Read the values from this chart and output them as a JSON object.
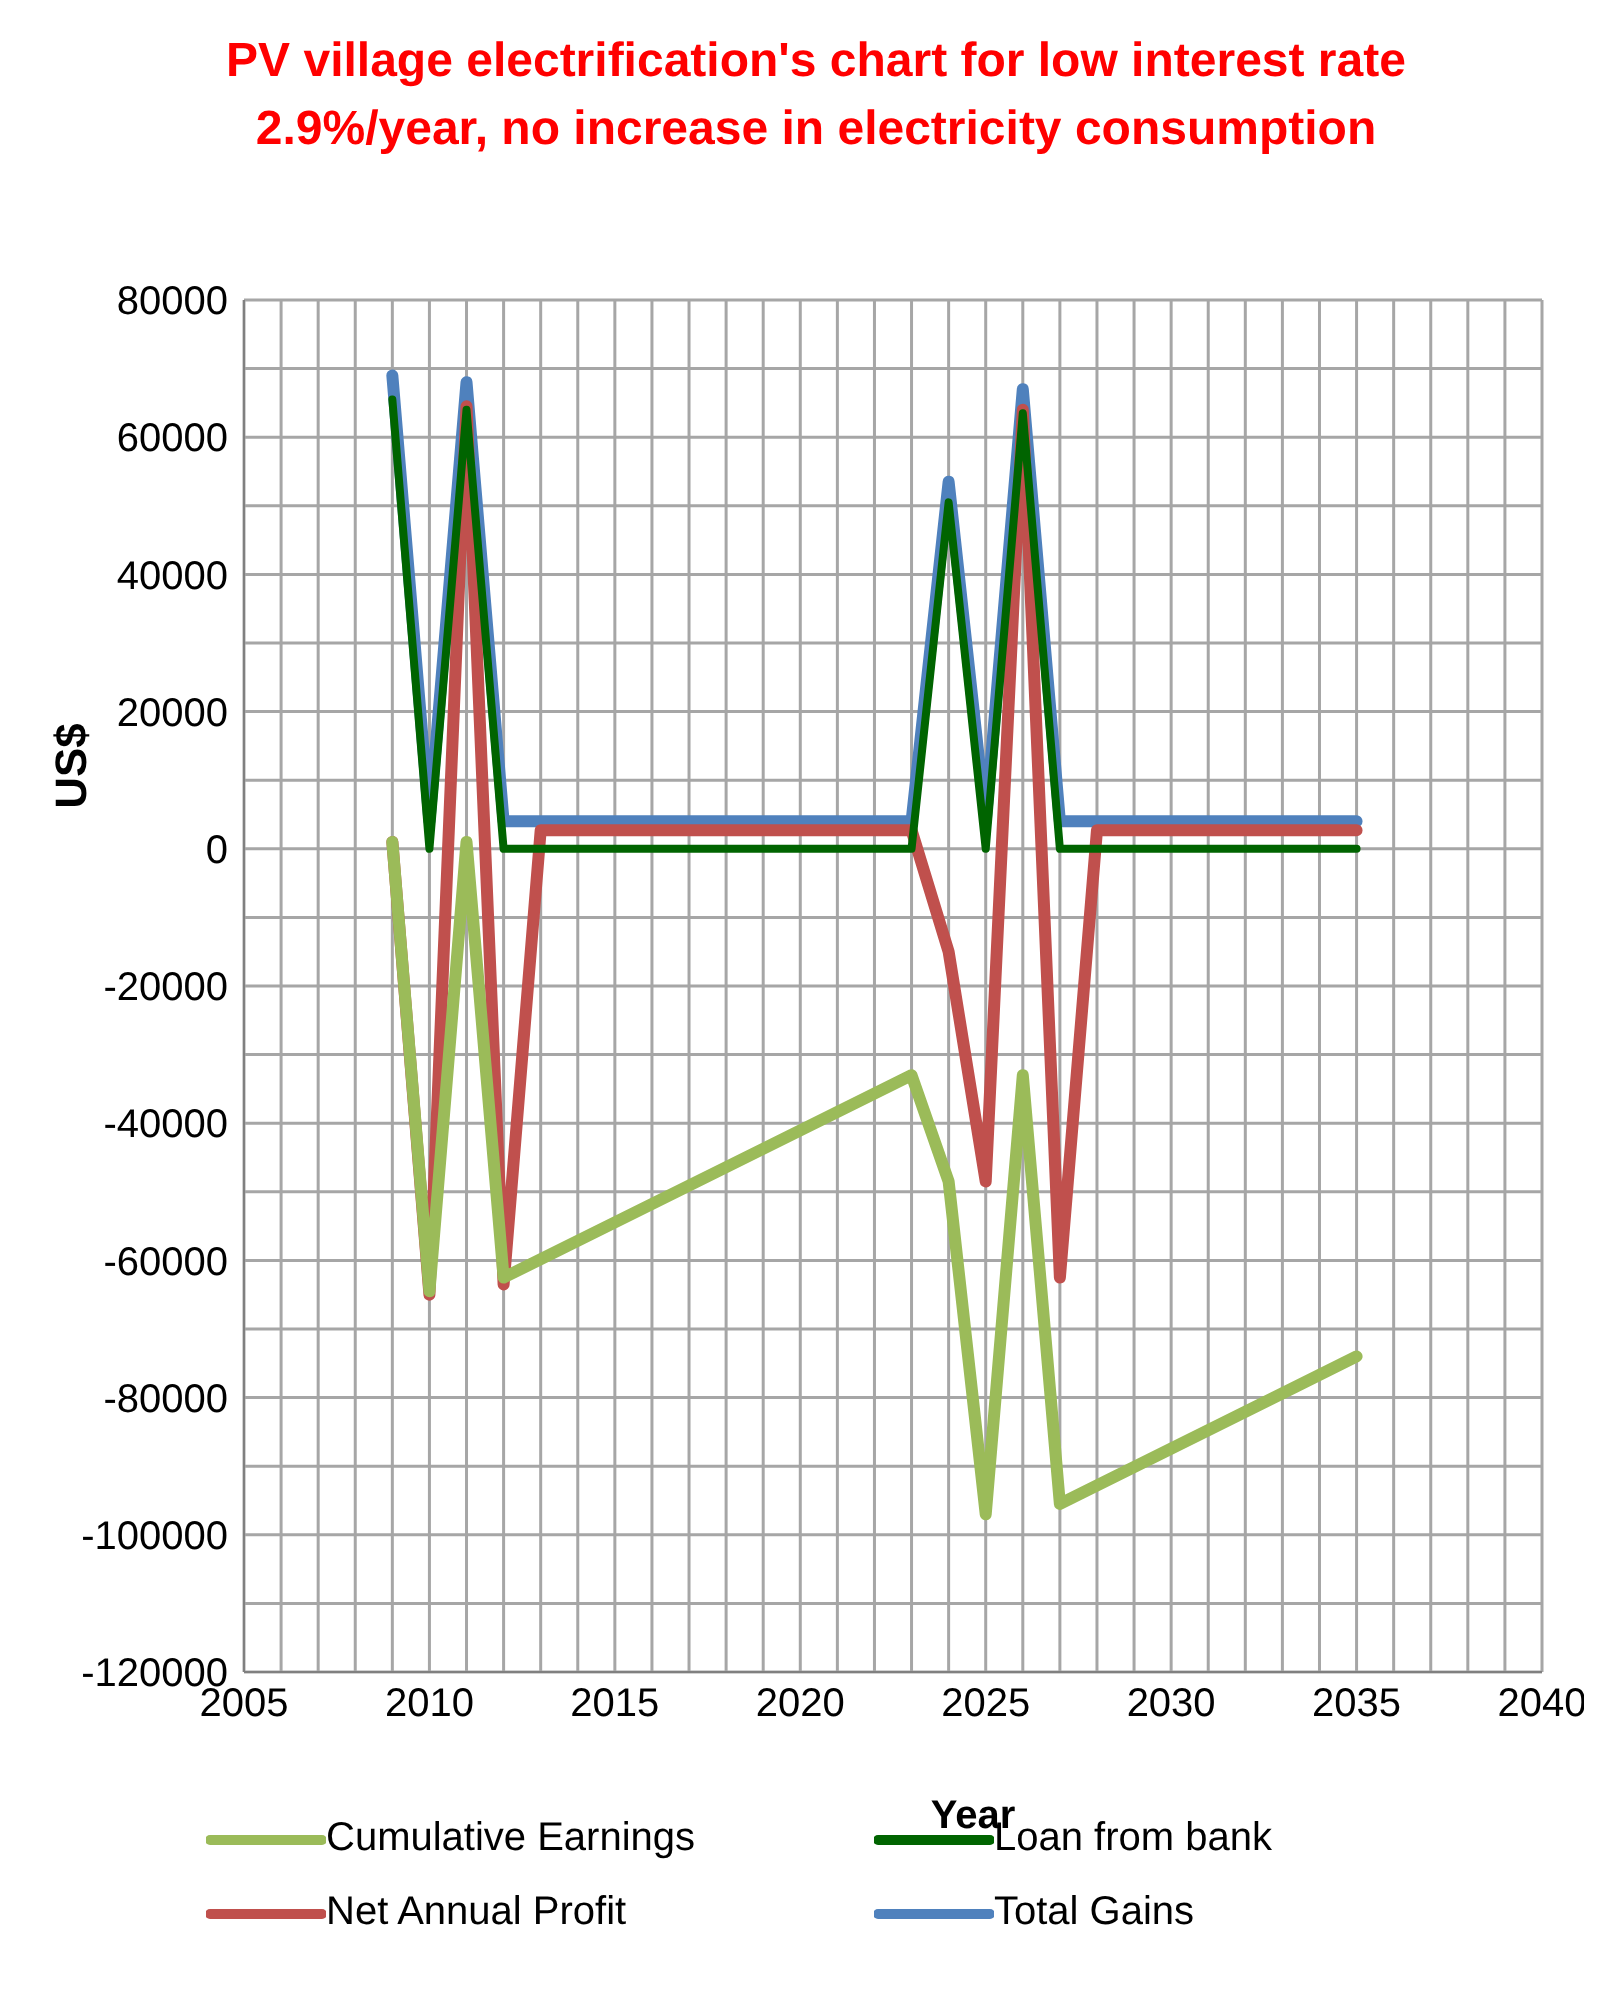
{
  "chart_data": {
    "type": "line",
    "title": "PV village electrification's chart for low interest rate 2.9%/year, no increase in electricity consumption",
    "xlabel": "Year",
    "ylabel": "US$",
    "xlim": [
      2005,
      2040
    ],
    "ylim": [
      -120000,
      80000
    ],
    "xticks": [
      2005,
      {
        "value": 2006,
        "label": null
      },
      {
        "value": 2007,
        "label": null
      },
      {
        "value": 2008,
        "label": null
      },
      {
        "value": 2009,
        "label": null
      },
      2010,
      {
        "value": 2011,
        "label": null
      },
      {
        "value": 2012,
        "label": null
      },
      {
        "value": 2013,
        "label": null
      },
      {
        "value": 2014,
        "label": null
      },
      2015,
      {
        "value": 2016,
        "label": null
      },
      {
        "value": 2017,
        "label": null
      },
      {
        "value": 2018,
        "label": null
      },
      {
        "value": 2019,
        "label": null
      },
      2020,
      {
        "value": 2021,
        "label": null
      },
      {
        "value": 2022,
        "label": null
      },
      {
        "value": 2023,
        "label": null
      },
      {
        "value": 2024,
        "label": null
      },
      2025,
      {
        "value": 2026,
        "label": null
      },
      {
        "value": 2027,
        "label": null
      },
      {
        "value": 2028,
        "label": null
      },
      {
        "value": 2029,
        "label": null
      },
      2030,
      {
        "value": 2031,
        "label": null
      },
      {
        "value": 2032,
        "label": null
      },
      {
        "value": 2033,
        "label": null
      },
      {
        "value": 2034,
        "label": null
      },
      2035,
      {
        "value": 2036,
        "label": null
      },
      {
        "value": 2037,
        "label": null
      },
      {
        "value": 2038,
        "label": null
      },
      {
        "value": 2039,
        "label": null
      },
      2040
    ],
    "yticks": [
      -120000,
      {
        "value": -110000,
        "label": null
      },
      -100000,
      {
        "value": -90000,
        "label": null
      },
      -80000,
      {
        "value": -70000,
        "label": null
      },
      -60000,
      {
        "value": -50000,
        "label": null
      },
      -40000,
      {
        "value": -30000,
        "label": null
      },
      -20000,
      {
        "value": -10000,
        "label": null
      },
      0,
      {
        "value": 10000,
        "label": null
      },
      20000,
      {
        "value": 30000,
        "label": null
      },
      40000,
      {
        "value": 50000,
        "label": null
      },
      60000,
      {
        "value": 70000,
        "label": null
      },
      80000
    ],
    "grid": true,
    "legend": "bottom",
    "marker": "none",
    "line_style": "solid",
    "series": [
      {
        "name": "Total Gains",
        "color": "#4f81bd",
        "x": [
          2009,
          2010,
          2011,
          2012,
          2023,
          2024,
          2025,
          2026,
          2027,
          2035
        ],
        "values": [
          69000,
          4000,
          68000,
          4000,
          4000,
          53500,
          4000,
          67000,
          4000,
          4000
        ]
      },
      {
        "name": "Net Annual Profit",
        "color": "#c0504d",
        "x": [
          2009,
          2010,
          2011,
          2012,
          2013,
          2023,
          2024,
          2025,
          2026,
          2027,
          2028,
          2035
        ],
        "values": [
          1000,
          -65000,
          64500,
          -63500,
          2700,
          2700,
          -15000,
          -48500,
          64000,
          -62500,
          2700,
          2700
        ]
      },
      {
        "name": "Cumulative Earnings",
        "color": "#9bbb59",
        "x": [
          2009,
          2010,
          2011,
          2012,
          2023,
          2024,
          2025,
          2026,
          2027,
          2035
        ],
        "values": [
          1000,
          -64500,
          1000,
          -62500,
          -33000,
          -48500,
          -97000,
          -33000,
          -95500,
          -74000
        ]
      },
      {
        "name": "Loan from bank",
        "color": "#006400",
        "x": [
          2009,
          2010,
          2011,
          2012,
          2023,
          2024,
          2025,
          2026,
          2027,
          2035
        ],
        "values": [
          65500,
          0,
          64000,
          0,
          0,
          50500,
          0,
          63500,
          0,
          0
        ]
      }
    ]
  }
}
